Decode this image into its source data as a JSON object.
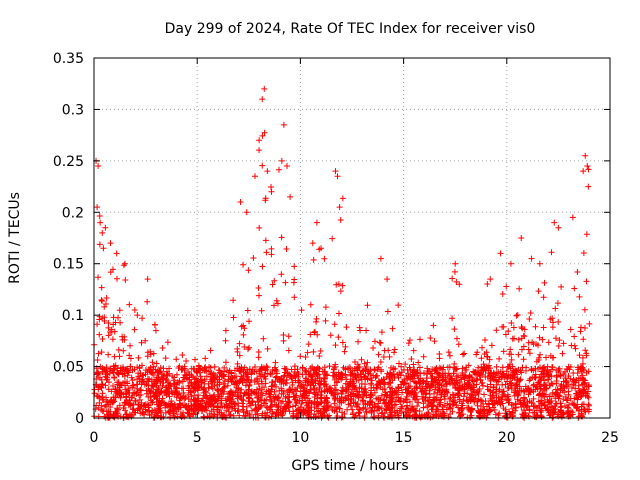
{
  "chart_data": {
    "type": "scatter",
    "title": "Day 299 of 2024, Rate Of TEC Index for receiver vis0",
    "xlabel": "GPS time / hours",
    "ylabel": "ROTI / TECUs",
    "xlim": [
      0,
      25
    ],
    "ylim": [
      0,
      0.35
    ],
    "x_ticks": [
      0,
      5,
      10,
      15,
      20,
      25
    ],
    "x_tick_labels": [
      "0",
      "5",
      "10",
      "15",
      "20",
      "25"
    ],
    "y_ticks": [
      0,
      0.05,
      0.1,
      0.15,
      0.2,
      0.25,
      0.3,
      0.35
    ],
    "y_tick_labels": [
      "0",
      "0.05",
      "0.1",
      "0.15",
      "0.2",
      "0.25",
      "0.3",
      "0.35"
    ],
    "grid": true,
    "marker": "+",
    "marker_color": "#ff0000",
    "data_range_x": [
      0,
      24
    ],
    "envelope": {
      "x": [
        0.0,
        0.2,
        0.5,
        1.0,
        1.5,
        2.0,
        2.5,
        3.0,
        4.0,
        5.0,
        6.0,
        7.0,
        7.5,
        8.0,
        8.3,
        9.0,
        9.5,
        10.0,
        10.5,
        11.0,
        12.0,
        13.0,
        14.0,
        15.0,
        16.0,
        17.0,
        17.5,
        18.0,
        19.0,
        20.0,
        21.0,
        22.0,
        22.5,
        23.0,
        23.5,
        24.0
      ],
      "y": [
        0.2,
        0.25,
        0.2,
        0.17,
        0.15,
        0.11,
        0.13,
        0.09,
        0.07,
        0.07,
        0.07,
        0.13,
        0.21,
        0.27,
        0.32,
        0.25,
        0.29,
        0.11,
        0.14,
        0.19,
        0.24,
        0.11,
        0.15,
        0.1,
        0.09,
        0.11,
        0.15,
        0.08,
        0.13,
        0.16,
        0.18,
        0.15,
        0.2,
        0.17,
        0.25,
        0.26
      ]
    },
    "points": [
      [
        0.1,
        0.25
      ],
      [
        0.2,
        0.245
      ],
      [
        0.15,
        0.205
      ],
      [
        0.3,
        0.19
      ],
      [
        0.4,
        0.18
      ],
      [
        0.55,
        0.185
      ],
      [
        0.8,
        0.17
      ],
      [
        1.1,
        0.16
      ],
      [
        1.5,
        0.15
      ],
      [
        2.1,
        0.1
      ],
      [
        2.6,
        0.135
      ],
      [
        3.0,
        0.085
      ],
      [
        7.1,
        0.21
      ],
      [
        7.4,
        0.2
      ],
      [
        7.8,
        0.235
      ],
      [
        8.0,
        0.27
      ],
      [
        8.15,
        0.31
      ],
      [
        8.25,
        0.32
      ],
      [
        8.4,
        0.24
      ],
      [
        8.6,
        0.22
      ],
      [
        9.1,
        0.25
      ],
      [
        9.2,
        0.285
      ],
      [
        9.35,
        0.245
      ],
      [
        9.5,
        0.215
      ],
      [
        10.6,
        0.17
      ],
      [
        10.8,
        0.19
      ],
      [
        11.0,
        0.165
      ],
      [
        11.7,
        0.24
      ],
      [
        11.8,
        0.235
      ],
      [
        11.9,
        0.205
      ],
      [
        13.9,
        0.155
      ],
      [
        14.2,
        0.135
      ],
      [
        17.5,
        0.15
      ],
      [
        17.7,
        0.13
      ],
      [
        19.2,
        0.135
      ],
      [
        19.7,
        0.16
      ],
      [
        20.2,
        0.15
      ],
      [
        20.7,
        0.175
      ],
      [
        21.2,
        0.155
      ],
      [
        21.6,
        0.15
      ],
      [
        22.3,
        0.19
      ],
      [
        22.5,
        0.185
      ],
      [
        23.2,
        0.195
      ],
      [
        23.7,
        0.24
      ],
      [
        23.8,
        0.255
      ],
      [
        23.9,
        0.245
      ],
      [
        23.95,
        0.225
      ]
    ]
  }
}
